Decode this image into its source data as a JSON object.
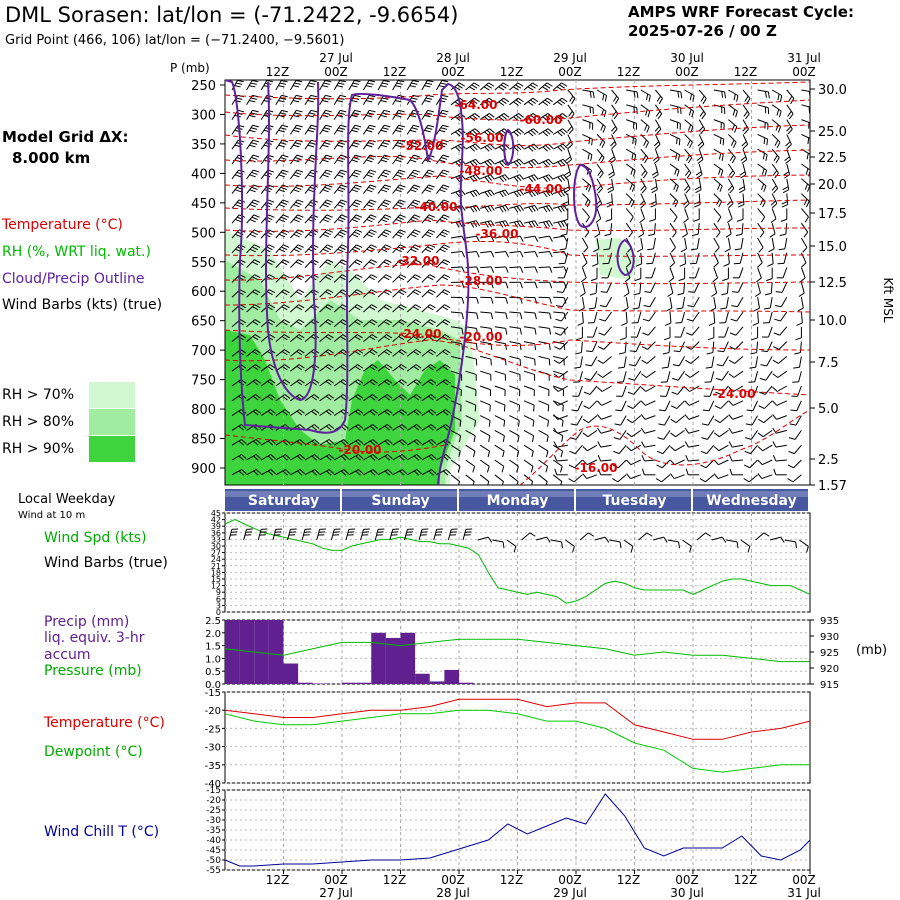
{
  "header": {
    "title": "DML Sorasen:  lat/lon = (-71.2422, -9.6654)",
    "subtitle": "Grid Point (466, 106) lat/lon = (−71.2400, −9.5601)",
    "cycle_line1": "AMPS WRF Forecast Cycle:",
    "cycle_line2": "2025-07-26 / 00  Z"
  },
  "model_grid": {
    "line1": "Model Grid ΔX:",
    "line2": "8.000 km"
  },
  "legend": {
    "temperature": "Temperature (°C)",
    "rh": "RH (%, WRT liq. wat.)",
    "cloud": "Cloud/Precip Outline",
    "wind": "Wind Barbs (kts) (true)",
    "rh_levels": [
      {
        "label": "RH > 70%",
        "color": "#d2f8d2"
      },
      {
        "label": "RH > 80%",
        "color": "#a0eca0"
      },
      {
        "label": "RH > 90%",
        "color": "#3ed43e"
      }
    ]
  },
  "colors": {
    "temperature": "#dd0000",
    "rh": "#00bb00",
    "cloud": "#6020a0",
    "precip": "#602090",
    "windchill": "#000099",
    "dewpoint": "#00cc00",
    "day_band": "#4858a0"
  },
  "time_axis": {
    "hours": [
      0,
      120
    ],
    "top_ticks": [
      "12Z",
      "00Z",
      "12Z",
      "00Z",
      "12Z",
      "00Z",
      "12Z",
      "00Z",
      "12Z",
      "00Z"
    ],
    "dates": [
      "27 Jul",
      "28 Jul",
      "29 Jul",
      "30 Jul",
      "31 Jul"
    ],
    "weekday_title": "Local Weekday",
    "weekdays": [
      "Saturday",
      "Sunday",
      "Monday",
      "Tuesday",
      "Wednesday"
    ]
  },
  "cross_section": {
    "p_label": "P (mb)",
    "pressure_ticks": [
      250,
      300,
      350,
      400,
      450,
      500,
      550,
      600,
      650,
      700,
      750,
      800,
      850,
      900
    ],
    "height_label": "Kft MSL",
    "height_ticks": [
      "30.0",
      "25.0",
      "22.5",
      "20.0",
      "17.5",
      "15.0",
      "12.5",
      "10.0",
      "7.5",
      "5.0",
      "2.5",
      "1.57"
    ],
    "temp_labels": [
      "-64.00",
      "-60.00",
      "-56.00",
      "-52.00",
      "-48.00",
      "-44.00",
      "-40.00",
      "-36.00",
      "-32.00",
      "-28.00",
      "-24.00",
      "-20.00",
      "-24.00",
      "-20.00",
      "-16.00"
    ]
  },
  "chart_data": [
    {
      "type": "line",
      "title": "Wind Spd (kts)",
      "subtitle": "Wind at 10 m",
      "ylabel2": "Wind Barbs (true)",
      "ylim": [
        0,
        45
      ],
      "yticks": [
        0,
        3,
        6,
        9,
        12,
        15,
        18,
        21,
        24,
        27,
        30,
        33,
        36,
        39,
        42,
        45
      ],
      "x": [
        0,
        2,
        4,
        6,
        8,
        10,
        12,
        14,
        16,
        18,
        20,
        22,
        24,
        26,
        28,
        30,
        32,
        34,
        36,
        38,
        40,
        42,
        44,
        46,
        48,
        50,
        52,
        54,
        56,
        58,
        60,
        62,
        64,
        66,
        68,
        70,
        72,
        74,
        76,
        78,
        80,
        82,
        84,
        86,
        88,
        90,
        92,
        94,
        96,
        98,
        100,
        102,
        104,
        106,
        108,
        110,
        112,
        114,
        116,
        118,
        120
      ],
      "series": [
        {
          "name": "Wind Spd (kts)",
          "values": [
            40,
            42,
            40,
            38,
            36,
            35,
            34,
            33,
            32,
            31,
            29,
            28,
            28,
            30,
            31,
            32,
            33,
            33,
            34,
            33,
            32,
            32,
            31,
            31,
            30,
            29,
            26,
            18,
            11,
            10,
            9,
            8,
            9,
            8,
            7,
            4,
            5,
            7,
            10,
            13,
            14,
            13,
            11,
            10,
            10,
            10,
            10,
            10,
            8,
            10,
            12,
            14,
            15,
            15,
            14,
            13,
            12,
            12,
            12,
            10,
            8
          ]
        }
      ]
    },
    {
      "type": "bar",
      "title": "Precip (mm)",
      "subtitle": "liq. equiv. 3-hr accum",
      "ylim": [
        0,
        2.5
      ],
      "yticks": [
        0.0,
        0.5,
        1.0,
        1.5,
        2.0,
        2.5
      ],
      "x": [
        0,
        3,
        6,
        9,
        12,
        15,
        18,
        21,
        24,
        27,
        30,
        33,
        36,
        39,
        42,
        45,
        48
      ],
      "values": [
        2.5,
        2.5,
        2.5,
        2.5,
        0.8,
        0.05,
        0.02,
        0.0,
        0.05,
        0.05,
        2.0,
        1.8,
        2.0,
        0.4,
        0.1,
        0.55,
        0.05
      ]
    },
    {
      "type": "line",
      "title": "Pressure (mb)",
      "ylabel": "(mb)",
      "ylim": [
        915,
        935
      ],
      "yticks": [
        915,
        920,
        925,
        930,
        935
      ],
      "x": [
        0,
        6,
        12,
        18,
        24,
        30,
        36,
        42,
        48,
        54,
        60,
        66,
        72,
        78,
        84,
        90,
        96,
        102,
        108,
        114,
        120
      ],
      "series": [
        {
          "name": "Pressure (mb)",
          "values": [
            926,
            925,
            924,
            926,
            928,
            928,
            927,
            928,
            929,
            929,
            929,
            928,
            927,
            926,
            924,
            925,
            924,
            924,
            923,
            922,
            922
          ]
        }
      ]
    },
    {
      "type": "line",
      "title": "Temperature (°C)",
      "ylabel2": "Dewpoint (°C)",
      "ylim": [
        -40,
        -15
      ],
      "yticks": [
        -40,
        -35,
        -30,
        -25,
        -20,
        -15
      ],
      "x": [
        0,
        6,
        12,
        18,
        24,
        30,
        36,
        42,
        48,
        54,
        60,
        66,
        72,
        78,
        84,
        90,
        96,
        102,
        108,
        114,
        120
      ],
      "series": [
        {
          "name": "Temperature (°C)",
          "values": [
            -20,
            -21,
            -22,
            -22,
            -21,
            -20,
            -20,
            -19,
            -17,
            -17,
            -17,
            -19,
            -18,
            -18,
            -24,
            -26,
            -28,
            -28,
            -26,
            -25,
            -23
          ]
        },
        {
          "name": "Dewpoint (°C)",
          "values": [
            -21,
            -23,
            -24,
            -24,
            -23,
            -22,
            -21,
            -21,
            -20,
            -20,
            -21,
            -23,
            -23,
            -25,
            -29,
            -31,
            -36,
            -37,
            -36,
            -35,
            -35
          ]
        }
      ]
    },
    {
      "type": "line",
      "title": "Wind Chill T (°C)",
      "ylim": [
        -55,
        -15
      ],
      "yticks": [
        -55,
        -50,
        -45,
        -40,
        -35,
        -30,
        -25,
        -20,
        -15
      ],
      "x": [
        0,
        3,
        6,
        12,
        18,
        24,
        30,
        36,
        42,
        46,
        50,
        54,
        58,
        62,
        66,
        70,
        74,
        78,
        82,
        86,
        90,
        94,
        98,
        102,
        106,
        110,
        114,
        118,
        120
      ],
      "series": [
        {
          "name": "Wind Chill T (°C)",
          "values": [
            -50,
            -53,
            -53,
            -52,
            -52,
            -51,
            -50,
            -50,
            -49,
            -46,
            -43,
            -40,
            -32,
            -37,
            -33,
            -29,
            -32,
            -17,
            -28,
            -44,
            -48,
            -44,
            -44,
            -44,
            -38,
            -48,
            -50,
            -45,
            -40
          ]
        }
      ]
    }
  ]
}
